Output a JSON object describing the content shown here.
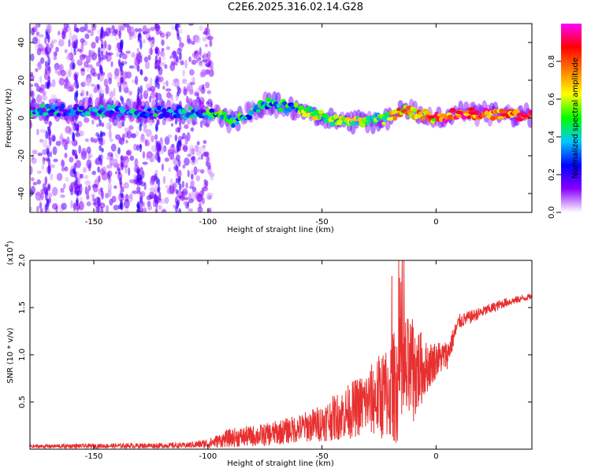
{
  "title": "C2E6.2025.316.02.14.G28",
  "chart_data": [
    {
      "type": "heatmap",
      "xlabel": "Height of straight line (km)",
      "ylabel": "Frequency (Hz)",
      "xlim": [
        -178,
        42
      ],
      "ylim": [
        -50,
        50
      ],
      "xticks": [
        -150,
        -100,
        -50,
        0
      ],
      "yticks": [
        -40,
        -20,
        0,
        20,
        40
      ],
      "colorbar": {
        "label": "Normalized spectral amplitude",
        "range": [
          0,
          1
        ],
        "ticks": [
          "0.0",
          "0.2",
          "0.4",
          "0.6",
          "0.8"
        ],
        "tick_values": [
          0,
          0.2,
          0.4,
          0.6,
          0.8
        ],
        "colors": [
          "#ffffff",
          "#8a00ff",
          "#0000ff",
          "#00c8ff",
          "#00ff00",
          "#ffff00",
          "#ff8000",
          "#ff0000",
          "#ff00ff"
        ]
      },
      "ridge": [
        {
          "x": -175,
          "f": 4
        },
        {
          "x": -150,
          "f": 4
        },
        {
          "x": -125,
          "f": 3
        },
        {
          "x": -100,
          "f": 3
        },
        {
          "x": -88,
          "f": -2
        },
        {
          "x": -75,
          "f": 8
        },
        {
          "x": -60,
          "f": 5
        },
        {
          "x": -40,
          "f": -3
        },
        {
          "x": -33,
          "f": -2
        },
        {
          "x": -20,
          "f": 0
        },
        {
          "x": -15,
          "f": 4
        },
        {
          "x": 0,
          "f": 0
        },
        {
          "x": 10,
          "f": 3
        },
        {
          "x": 40,
          "f": 1
        }
      ]
    },
    {
      "type": "line",
      "xlabel": "Height of straight line (km)",
      "ylabel": "SNR (10 * v/v)",
      "y_multiplier_label": "(x10",
      "y_multiplier_exp": "4",
      "xlim": [
        -178,
        42
      ],
      "ylim": [
        0,
        2.0
      ],
      "xticks": [
        -150,
        -100,
        -50,
        0
      ],
      "yticks": [
        "0.5",
        "1.0",
        "1.5",
        "2.0"
      ],
      "ytick_values": [
        0.5,
        1.0,
        1.5,
        2.0
      ],
      "color": "#e83030",
      "envelope": {
        "x": [
          -178,
          -110,
          -100,
          -90,
          -75,
          -60,
          -50,
          -40,
          -30,
          -20,
          -15,
          -12,
          -8,
          -5,
          0,
          5,
          10,
          20,
          30,
          42
        ],
        "mean": [
          0.03,
          0.04,
          0.06,
          0.12,
          0.15,
          0.22,
          0.28,
          0.38,
          0.5,
          0.62,
          0.75,
          0.8,
          0.85,
          0.85,
          0.95,
          1.0,
          1.35,
          1.45,
          1.55,
          1.62
        ],
        "amp": [
          0.02,
          0.03,
          0.05,
          0.1,
          0.12,
          0.15,
          0.2,
          0.28,
          0.35,
          0.55,
          0.7,
          0.6,
          0.5,
          0.3,
          0.2,
          0.15,
          0.08,
          0.06,
          0.05,
          0.03
        ]
      }
    }
  ]
}
